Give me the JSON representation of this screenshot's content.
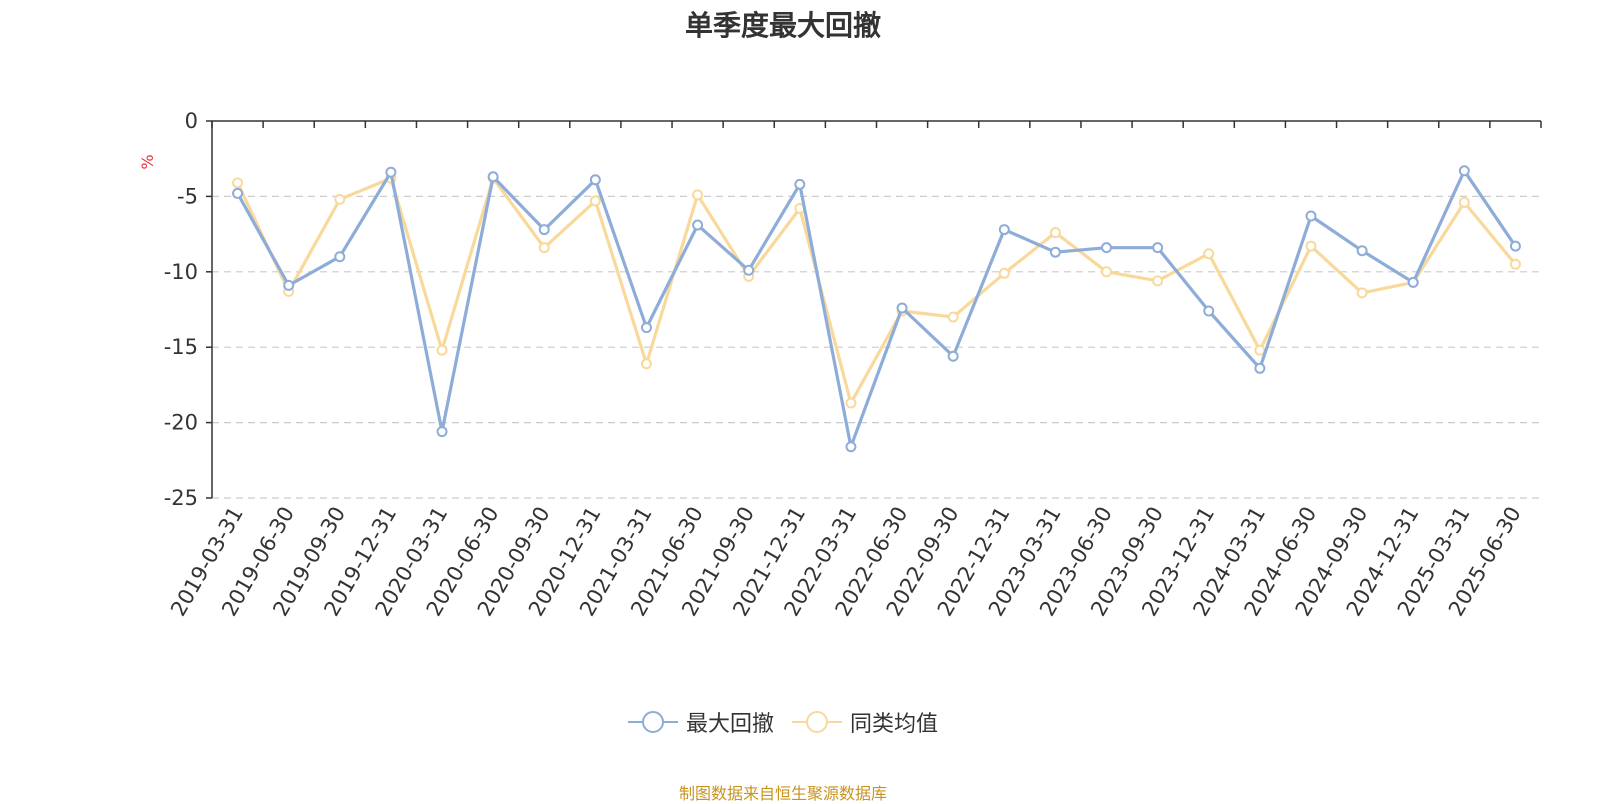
{
  "chart_data": {
    "type": "line",
    "title": "单季度最大回撤",
    "ylabel": "%",
    "xlabel": "",
    "ylim": [
      -25,
      0
    ],
    "yticks": [
      0,
      -5,
      -10,
      -15,
      -20,
      -25
    ],
    "grid": true,
    "legend_position": "bottom-center",
    "x": [
      "2019-03-31",
      "2019-06-30",
      "2019-09-30",
      "2019-12-31",
      "2020-03-31",
      "2020-06-30",
      "2020-09-30",
      "2020-12-31",
      "2021-03-31",
      "2021-06-30",
      "2021-09-30",
      "2021-12-31",
      "2022-03-31",
      "2022-06-30",
      "2022-09-30",
      "2022-12-31",
      "2023-03-31",
      "2023-06-30",
      "2023-09-30",
      "2023-12-31",
      "2024-03-31",
      "2024-06-30",
      "2024-09-30",
      "2024-12-31",
      "2025-03-31",
      "2025-06-30"
    ],
    "series": [
      {
        "name": "最大回撤",
        "color": "#8eacd8",
        "values": [
          -4.8,
          -10.9,
          -9.0,
          -3.4,
          -20.6,
          -3.7,
          -7.2,
          -3.9,
          -13.7,
          -6.9,
          -9.9,
          -4.2,
          -21.6,
          -12.4,
          -15.6,
          -7.2,
          -8.7,
          -8.4,
          -8.4,
          -12.6,
          -16.4,
          -6.3,
          -8.6,
          -10.7,
          -3.3,
          -8.3
        ]
      },
      {
        "name": "同类均值",
        "color": "#f9d99b",
        "values": [
          -4.1,
          -11.3,
          -5.2,
          -3.8,
          -15.2,
          -3.8,
          -8.4,
          -5.3,
          -16.1,
          -4.9,
          -10.3,
          -5.8,
          -18.7,
          -12.6,
          -13.0,
          -10.1,
          -7.4,
          -10.0,
          -10.6,
          -8.8,
          -15.2,
          -8.3,
          -11.4,
          -10.7,
          -5.4,
          -9.5
        ]
      }
    ]
  },
  "source_note": "制图数据来自恒生聚源数据库"
}
